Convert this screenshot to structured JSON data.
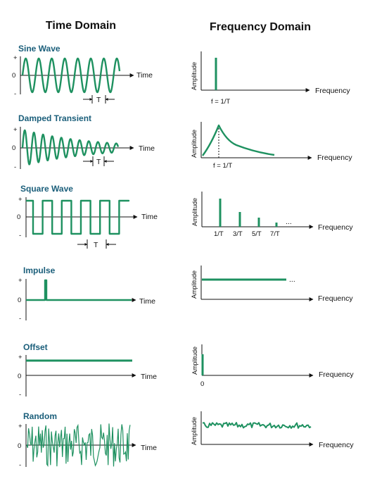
{
  "headers": {
    "time_domain": "Time Domain",
    "frequency_domain": "Frequency Domain"
  },
  "colors": {
    "signal": "#1e9160",
    "row_title": "#1a5e7a",
    "axis": "#111111"
  },
  "labels": {
    "time": "Time",
    "frequency": "Frequency",
    "amplitude": "Amplitude",
    "plus": "+",
    "zero": "0",
    "minus": "-",
    "period": "T",
    "ellipsis": "..."
  },
  "rows": [
    {
      "id": "sine",
      "title": "Sine Wave",
      "freq_label": "f = 1/T"
    },
    {
      "id": "damped",
      "title": "Damped Transient",
      "freq_label": "f = 1/T"
    },
    {
      "id": "square",
      "title": "Square Wave",
      "harmonics": [
        "1/T",
        "3/T",
        "5/T",
        "7/T"
      ]
    },
    {
      "id": "impulse",
      "title": "Impulse"
    },
    {
      "id": "offset",
      "title": "Offset",
      "freq_label": "0"
    },
    {
      "id": "random",
      "title": "Random"
    }
  ]
}
